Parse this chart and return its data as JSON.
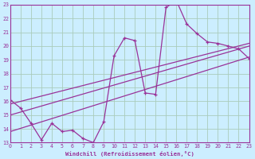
{
  "xlabel": "Windchill (Refroidissement éolien,°C)",
  "bg_color": "#cceeff",
  "grid_color": "#aaccbb",
  "line_color": "#993399",
  "xlim": [
    0,
    23
  ],
  "ylim": [
    13,
    23
  ],
  "xticks": [
    0,
    1,
    2,
    3,
    4,
    5,
    6,
    7,
    8,
    9,
    10,
    11,
    12,
    13,
    14,
    15,
    16,
    17,
    18,
    19,
    20,
    21,
    22,
    23
  ],
  "yticks": [
    13,
    14,
    15,
    16,
    17,
    18,
    19,
    20,
    21,
    22,
    23
  ],
  "scatter_x": [
    0,
    1,
    2,
    3,
    4,
    5,
    6,
    7,
    8,
    9,
    10,
    11,
    12,
    13,
    14,
    15,
    16,
    17,
    18,
    19,
    20,
    21,
    22,
    23
  ],
  "scatter_y": [
    16.1,
    15.5,
    14.4,
    13.2,
    14.4,
    13.8,
    13.9,
    13.3,
    13.0,
    14.5,
    19.3,
    20.6,
    20.4,
    16.6,
    16.5,
    22.8,
    23.3,
    21.6,
    20.9,
    20.3,
    20.2,
    20.0,
    19.8,
    19.1
  ],
  "line1_x": [
    0,
    23
  ],
  "line1_y": [
    15.8,
    20.2
  ],
  "line2_x": [
    0,
    23
  ],
  "line2_y": [
    15.0,
    20.0
  ],
  "line3_x": [
    0,
    23
  ],
  "line3_y": [
    13.8,
    19.2
  ]
}
